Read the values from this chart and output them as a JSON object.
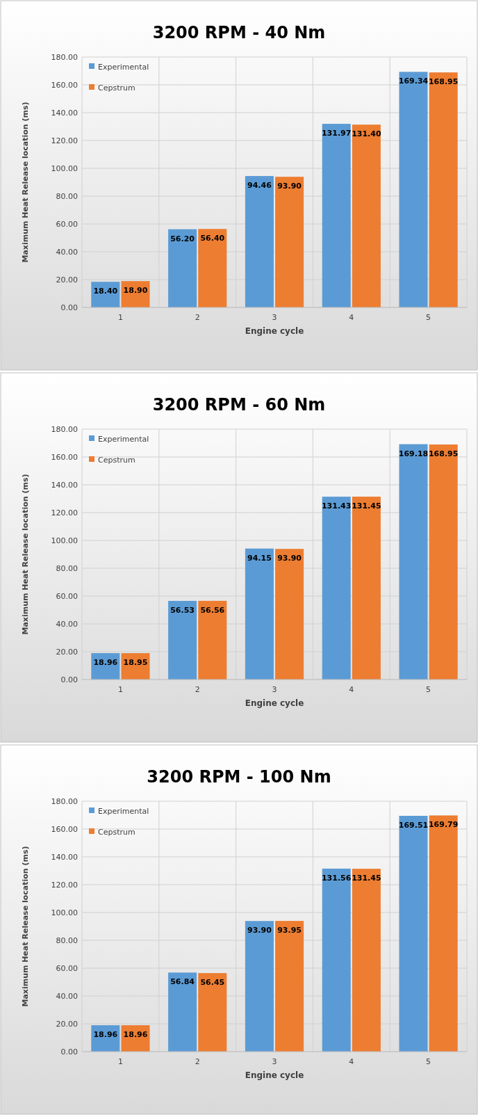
{
  "chart_data": [
    {
      "type": "bar",
      "title": "3200 RPM - 40 Nm",
      "xlabel": "Engine cycle",
      "ylabel": "Maximum Heat Release location (ms)",
      "categories": [
        "1",
        "2",
        "3",
        "4",
        "5"
      ],
      "series": [
        {
          "name": "Experimental",
          "color": "#5b9bd5",
          "values": [
            18.4,
            56.2,
            94.46,
            131.97,
            169.34
          ],
          "value_labels": [
            "18.40",
            "56.20",
            "94.46",
            "131.97",
            "169.34"
          ]
        },
        {
          "name": "Cepstrum",
          "color": "#ed7d31",
          "values": [
            18.9,
            56.4,
            93.9,
            131.4,
            168.95
          ],
          "value_labels": [
            "18.90",
            "56.40",
            "93.90",
            "131.40",
            "168.95"
          ]
        }
      ],
      "ylim": [
        0,
        180
      ],
      "yticks": [
        {
          "value": 0,
          "label": "0.00"
        },
        {
          "value": 20,
          "label": "20.00"
        },
        {
          "value": 40,
          "label": "40.00"
        },
        {
          "value": 60,
          "label": "60.00"
        },
        {
          "value": 80,
          "label": "80.00"
        },
        {
          "value": 100,
          "label": "100.00"
        },
        {
          "value": 120,
          "label": "120.00"
        },
        {
          "value": 140,
          "label": "140.00"
        },
        {
          "value": 160,
          "label": "160.00"
        },
        {
          "value": 180,
          "label": "180.00"
        }
      ],
      "grid": true,
      "legend": "top left"
    },
    {
      "type": "bar",
      "title": "3200 RPM - 60 Nm",
      "xlabel": "Engine cycle",
      "ylabel": "Maximum Heat Release location (ms)",
      "categories": [
        "1",
        "2",
        "3",
        "4",
        "5"
      ],
      "series": [
        {
          "name": "Experimental",
          "color": "#5b9bd5",
          "values": [
            18.96,
            56.53,
            94.15,
            131.43,
            169.18
          ],
          "value_labels": [
            "18.96",
            "56.53",
            "94.15",
            "131.43",
            "169.18"
          ]
        },
        {
          "name": "Cepstrum",
          "color": "#ed7d31",
          "values": [
            18.95,
            56.56,
            93.9,
            131.45,
            168.95
          ],
          "value_labels": [
            "18.95",
            "56.56",
            "93.90",
            "131.45",
            "168.95"
          ]
        }
      ],
      "ylim": [
        0,
        180
      ],
      "yticks": [
        {
          "value": 0,
          "label": "0.00"
        },
        {
          "value": 20,
          "label": "20.00"
        },
        {
          "value": 40,
          "label": "40.00"
        },
        {
          "value": 60,
          "label": "60.00"
        },
        {
          "value": 80,
          "label": "80.00"
        },
        {
          "value": 100,
          "label": "100.00"
        },
        {
          "value": 120,
          "label": "120.00"
        },
        {
          "value": 140,
          "label": "140.00"
        },
        {
          "value": 160,
          "label": "160.00"
        },
        {
          "value": 180,
          "label": "180.00"
        }
      ],
      "grid": true,
      "legend": "top left"
    },
    {
      "type": "bar",
      "title": "3200 RPM - 100 Nm",
      "xlabel": "Engine cycle",
      "ylabel": "Maximum Heat Release location (ms)",
      "categories": [
        "1",
        "2",
        "3",
        "4",
        "5"
      ],
      "series": [
        {
          "name": "Experimental",
          "color": "#5b9bd5",
          "values": [
            18.96,
            56.84,
            93.9,
            131.56,
            169.51
          ],
          "value_labels": [
            "18.96",
            "56.84",
            "93.90",
            "131.56",
            "169.51"
          ]
        },
        {
          "name": "Cepstrum",
          "color": "#ed7d31",
          "values": [
            18.96,
            56.45,
            93.95,
            131.45,
            169.79
          ],
          "value_labels": [
            "18.96",
            "56.45",
            "93.95",
            "131.45",
            "169.79"
          ]
        }
      ],
      "ylim": [
        0,
        180
      ],
      "yticks": [
        {
          "value": 0,
          "label": "0.00"
        },
        {
          "value": 20,
          "label": "20.00"
        },
        {
          "value": 40,
          "label": "40.00"
        },
        {
          "value": 60,
          "label": "60.00"
        },
        {
          "value": 80,
          "label": "80.00"
        },
        {
          "value": 100,
          "label": "100.00"
        },
        {
          "value": 120,
          "label": "120.00"
        },
        {
          "value": 140,
          "label": "140.00"
        },
        {
          "value": 160,
          "label": "160.00"
        },
        {
          "value": 180,
          "label": "180.00"
        }
      ],
      "grid": true,
      "legend": "top left"
    }
  ]
}
